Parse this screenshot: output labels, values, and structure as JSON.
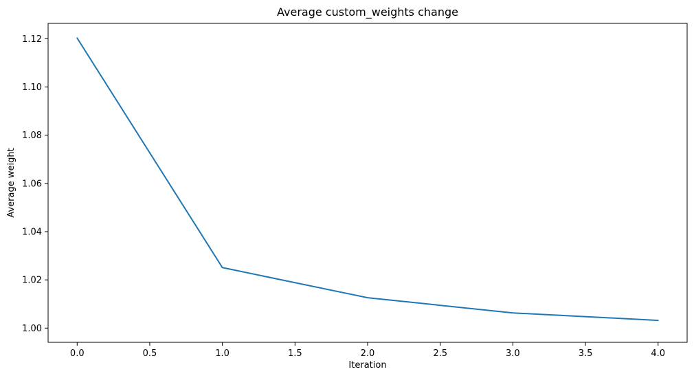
{
  "chart_data": {
    "type": "line",
    "title": "Average custom_weights change",
    "xlabel": "Iteration",
    "ylabel": "Average weight",
    "xlim": [
      -0.2,
      4.2
    ],
    "ylim": [
      0.9941,
      1.1264
    ],
    "xticks": [
      0.0,
      0.5,
      1.0,
      1.5,
      2.0,
      2.5,
      3.0,
      3.5,
      4.0
    ],
    "xtick_labels": [
      "0.0",
      "0.5",
      "1.0",
      "1.5",
      "2.0",
      "2.5",
      "3.0",
      "3.5",
      "4.0"
    ],
    "yticks": [
      1.0,
      1.02,
      1.04,
      1.06,
      1.08,
      1.1,
      1.12
    ],
    "ytick_labels": [
      "1.00",
      "1.02",
      "1.04",
      "1.06",
      "1.08",
      "1.10",
      "1.12"
    ],
    "grid": false,
    "series": [
      {
        "color": "#1f77b4",
        "x": [
          0,
          1,
          2,
          3,
          4
        ],
        "y": [
          1.1203,
          1.0251,
          1.0126,
          1.0063,
          1.0032
        ]
      }
    ]
  }
}
